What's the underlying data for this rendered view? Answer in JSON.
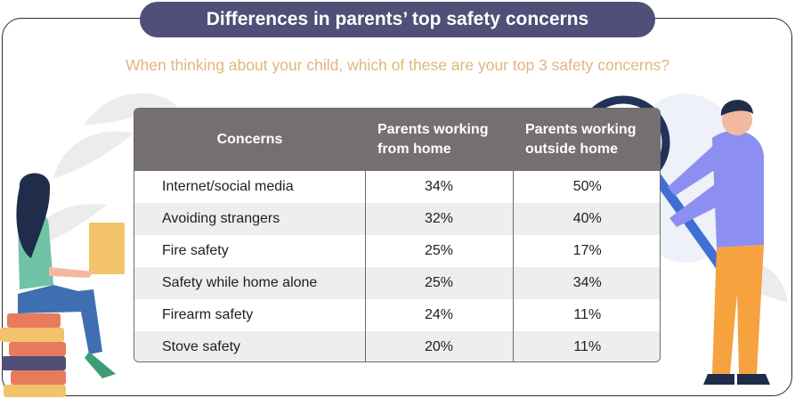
{
  "title": "Differences in parents’ top safety concerns",
  "subtitle": "When thinking about your child, which of these are your top 3 safety concerns?",
  "colors": {
    "title_bg": "#4f4f77",
    "subtitle": "#e1b57e",
    "header_bg": "#75706f",
    "stripe": "#eeeeee"
  },
  "illustrations": [
    "woman-with-laptop-on-books",
    "man-with-magnifying-glass"
  ],
  "chart_data": {
    "type": "table",
    "title": "Differences in parents’ top safety concerns",
    "subtitle": "When thinking about your child, which of these are your top 3 safety concerns?",
    "columns": [
      "Concerns",
      "Parents working from home",
      "Parents working outside home"
    ],
    "rows": [
      {
        "concern": "Internet/social media",
        "from_home": "34%",
        "outside_home": "50%"
      },
      {
        "concern": "Avoiding strangers",
        "from_home": "32%",
        "outside_home": "40%"
      },
      {
        "concern": "Fire safety",
        "from_home": "25%",
        "outside_home": "17%"
      },
      {
        "concern": "Safety while home alone",
        "from_home": "25%",
        "outside_home": "34%"
      },
      {
        "concern": "Firearm safety",
        "from_home": "24%",
        "outside_home": "11%"
      },
      {
        "concern": "Stove safety",
        "from_home": "20%",
        "outside_home": "11%"
      }
    ]
  }
}
